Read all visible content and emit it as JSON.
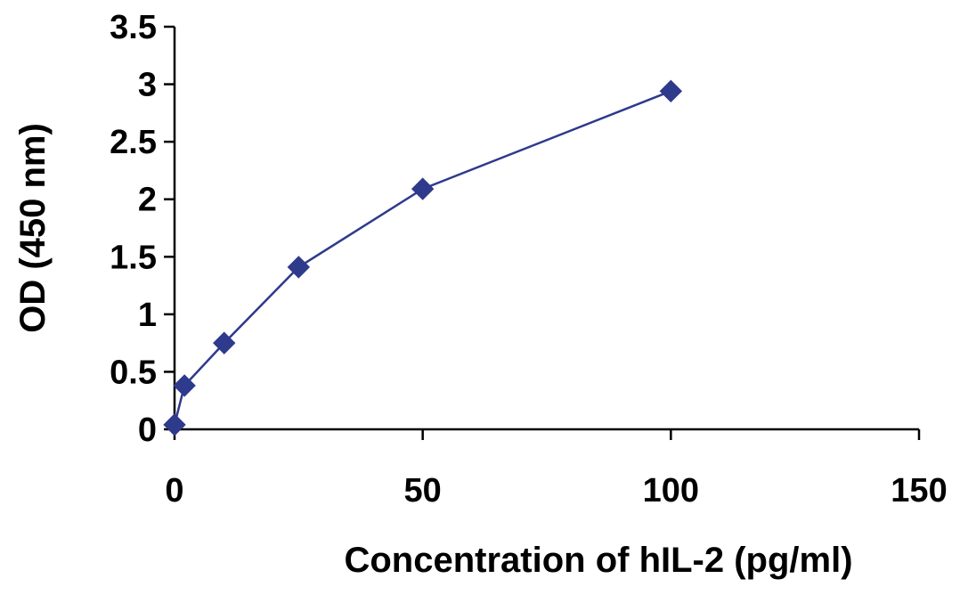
{
  "chart_data": {
    "type": "line",
    "title": "",
    "xlabel": "Concentration of hIL-2 (pg/ml)",
    "ylabel": "OD (450 nm)",
    "xlim": [
      0,
      150
    ],
    "ylim": [
      0,
      3.5
    ],
    "x_ticks": [
      0,
      50,
      100,
      150
    ],
    "x_tick_labels": [
      "0",
      "50",
      "100",
      "150"
    ],
    "y_ticks": [
      0,
      0.5,
      1,
      1.5,
      2,
      2.5,
      3,
      3.5
    ],
    "y_tick_labels": [
      "0",
      "0.5",
      "1",
      "1.5",
      "2",
      "2.5",
      "3",
      "3.5"
    ],
    "grid": false,
    "marker": "diamond",
    "series": [
      {
        "color": "#2e3a8c",
        "x": [
          0,
          2,
          10,
          25,
          50,
          100
        ],
        "y": [
          0.04,
          0.38,
          0.75,
          1.41,
          2.09,
          2.94
        ]
      }
    ]
  }
}
